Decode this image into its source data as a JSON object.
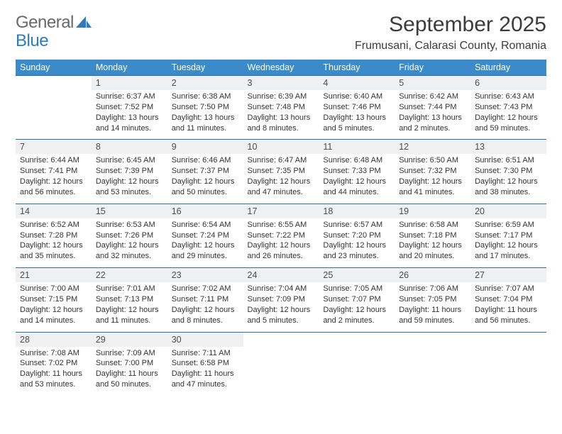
{
  "logo": {
    "text_a": "General",
    "text_b": "Blue"
  },
  "title": {
    "month": "September 2025",
    "location": "Frumusani, Calarasi County, Romania"
  },
  "colors": {
    "header_bg": "#3b8bca",
    "header_text": "#ffffff",
    "datebar_bg": "#eef0f1",
    "datebar_border": "#2f6ea3",
    "body_text": "#333333",
    "logo_gray": "#666a6d",
    "logo_blue": "#2f7bbf"
  },
  "day_labels": [
    "Sunday",
    "Monday",
    "Tuesday",
    "Wednesday",
    "Thursday",
    "Friday",
    "Saturday"
  ],
  "weeks": [
    [
      {
        "num": "",
        "sunrise": "",
        "sunset": "",
        "daylight": ""
      },
      {
        "num": "1",
        "sunrise": "Sunrise: 6:37 AM",
        "sunset": "Sunset: 7:52 PM",
        "daylight": "Daylight: 13 hours and 14 minutes."
      },
      {
        "num": "2",
        "sunrise": "Sunrise: 6:38 AM",
        "sunset": "Sunset: 7:50 PM",
        "daylight": "Daylight: 13 hours and 11 minutes."
      },
      {
        "num": "3",
        "sunrise": "Sunrise: 6:39 AM",
        "sunset": "Sunset: 7:48 PM",
        "daylight": "Daylight: 13 hours and 8 minutes."
      },
      {
        "num": "4",
        "sunrise": "Sunrise: 6:40 AM",
        "sunset": "Sunset: 7:46 PM",
        "daylight": "Daylight: 13 hours and 5 minutes."
      },
      {
        "num": "5",
        "sunrise": "Sunrise: 6:42 AM",
        "sunset": "Sunset: 7:44 PM",
        "daylight": "Daylight: 13 hours and 2 minutes."
      },
      {
        "num": "6",
        "sunrise": "Sunrise: 6:43 AM",
        "sunset": "Sunset: 7:43 PM",
        "daylight": "Daylight: 12 hours and 59 minutes."
      }
    ],
    [
      {
        "num": "7",
        "sunrise": "Sunrise: 6:44 AM",
        "sunset": "Sunset: 7:41 PM",
        "daylight": "Daylight: 12 hours and 56 minutes."
      },
      {
        "num": "8",
        "sunrise": "Sunrise: 6:45 AM",
        "sunset": "Sunset: 7:39 PM",
        "daylight": "Daylight: 12 hours and 53 minutes."
      },
      {
        "num": "9",
        "sunrise": "Sunrise: 6:46 AM",
        "sunset": "Sunset: 7:37 PM",
        "daylight": "Daylight: 12 hours and 50 minutes."
      },
      {
        "num": "10",
        "sunrise": "Sunrise: 6:47 AM",
        "sunset": "Sunset: 7:35 PM",
        "daylight": "Daylight: 12 hours and 47 minutes."
      },
      {
        "num": "11",
        "sunrise": "Sunrise: 6:48 AM",
        "sunset": "Sunset: 7:33 PM",
        "daylight": "Daylight: 12 hours and 44 minutes."
      },
      {
        "num": "12",
        "sunrise": "Sunrise: 6:50 AM",
        "sunset": "Sunset: 7:32 PM",
        "daylight": "Daylight: 12 hours and 41 minutes."
      },
      {
        "num": "13",
        "sunrise": "Sunrise: 6:51 AM",
        "sunset": "Sunset: 7:30 PM",
        "daylight": "Daylight: 12 hours and 38 minutes."
      }
    ],
    [
      {
        "num": "14",
        "sunrise": "Sunrise: 6:52 AM",
        "sunset": "Sunset: 7:28 PM",
        "daylight": "Daylight: 12 hours and 35 minutes."
      },
      {
        "num": "15",
        "sunrise": "Sunrise: 6:53 AM",
        "sunset": "Sunset: 7:26 PM",
        "daylight": "Daylight: 12 hours and 32 minutes."
      },
      {
        "num": "16",
        "sunrise": "Sunrise: 6:54 AM",
        "sunset": "Sunset: 7:24 PM",
        "daylight": "Daylight: 12 hours and 29 minutes."
      },
      {
        "num": "17",
        "sunrise": "Sunrise: 6:55 AM",
        "sunset": "Sunset: 7:22 PM",
        "daylight": "Daylight: 12 hours and 26 minutes."
      },
      {
        "num": "18",
        "sunrise": "Sunrise: 6:57 AM",
        "sunset": "Sunset: 7:20 PM",
        "daylight": "Daylight: 12 hours and 23 minutes."
      },
      {
        "num": "19",
        "sunrise": "Sunrise: 6:58 AM",
        "sunset": "Sunset: 7:18 PM",
        "daylight": "Daylight: 12 hours and 20 minutes."
      },
      {
        "num": "20",
        "sunrise": "Sunrise: 6:59 AM",
        "sunset": "Sunset: 7:17 PM",
        "daylight": "Daylight: 12 hours and 17 minutes."
      }
    ],
    [
      {
        "num": "21",
        "sunrise": "Sunrise: 7:00 AM",
        "sunset": "Sunset: 7:15 PM",
        "daylight": "Daylight: 12 hours and 14 minutes."
      },
      {
        "num": "22",
        "sunrise": "Sunrise: 7:01 AM",
        "sunset": "Sunset: 7:13 PM",
        "daylight": "Daylight: 12 hours and 11 minutes."
      },
      {
        "num": "23",
        "sunrise": "Sunrise: 7:02 AM",
        "sunset": "Sunset: 7:11 PM",
        "daylight": "Daylight: 12 hours and 8 minutes."
      },
      {
        "num": "24",
        "sunrise": "Sunrise: 7:04 AM",
        "sunset": "Sunset: 7:09 PM",
        "daylight": "Daylight: 12 hours and 5 minutes."
      },
      {
        "num": "25",
        "sunrise": "Sunrise: 7:05 AM",
        "sunset": "Sunset: 7:07 PM",
        "daylight": "Daylight: 12 hours and 2 minutes."
      },
      {
        "num": "26",
        "sunrise": "Sunrise: 7:06 AM",
        "sunset": "Sunset: 7:05 PM",
        "daylight": "Daylight: 11 hours and 59 minutes."
      },
      {
        "num": "27",
        "sunrise": "Sunrise: 7:07 AM",
        "sunset": "Sunset: 7:04 PM",
        "daylight": "Daylight: 11 hours and 56 minutes."
      }
    ],
    [
      {
        "num": "28",
        "sunrise": "Sunrise: 7:08 AM",
        "sunset": "Sunset: 7:02 PM",
        "daylight": "Daylight: 11 hours and 53 minutes."
      },
      {
        "num": "29",
        "sunrise": "Sunrise: 7:09 AM",
        "sunset": "Sunset: 7:00 PM",
        "daylight": "Daylight: 11 hours and 50 minutes."
      },
      {
        "num": "30",
        "sunrise": "Sunrise: 7:11 AM",
        "sunset": "Sunset: 6:58 PM",
        "daylight": "Daylight: 11 hours and 47 minutes."
      },
      {
        "num": "",
        "sunrise": "",
        "sunset": "",
        "daylight": ""
      },
      {
        "num": "",
        "sunrise": "",
        "sunset": "",
        "daylight": ""
      },
      {
        "num": "",
        "sunrise": "",
        "sunset": "",
        "daylight": ""
      },
      {
        "num": "",
        "sunrise": "",
        "sunset": "",
        "daylight": ""
      }
    ]
  ]
}
